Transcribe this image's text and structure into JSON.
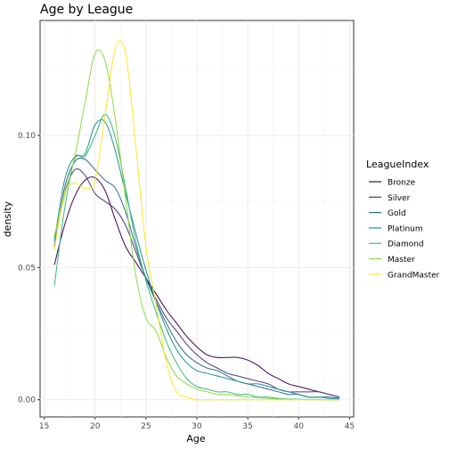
{
  "chart_data": {
    "type": "line",
    "title": "Age by League",
    "xlabel": "Age",
    "ylabel": "density",
    "xlim": [
      14.6,
      45.4
    ],
    "ylim": [
      -0.0065,
      0.1435
    ],
    "xticks": [
      15,
      20,
      25,
      30,
      35,
      40,
      45
    ],
    "yticks": [
      0.0,
      0.05,
      0.1
    ],
    "ytick_labels": [
      "0.00",
      "0.05",
      "0.10"
    ],
    "grid": true,
    "legend_title": "LeagueIndex",
    "legend_position": "right",
    "series": [
      {
        "name": "Bronze",
        "color": "#440154",
        "points": [
          [
            16,
            0.051
          ],
          [
            17,
            0.066
          ],
          [
            18,
            0.077
          ],
          [
            19,
            0.083
          ],
          [
            20,
            0.084
          ],
          [
            21,
            0.079
          ],
          [
            22,
            0.068
          ],
          [
            23,
            0.058
          ],
          [
            24,
            0.052
          ],
          [
            25,
            0.046
          ],
          [
            26,
            0.04
          ],
          [
            27,
            0.034
          ],
          [
            28,
            0.029
          ],
          [
            29,
            0.024
          ],
          [
            30,
            0.02
          ],
          [
            31,
            0.017
          ],
          [
            32,
            0.016
          ],
          [
            33,
            0.016
          ],
          [
            34,
            0.016
          ],
          [
            35,
            0.015
          ],
          [
            36,
            0.013
          ],
          [
            37,
            0.01
          ],
          [
            38,
            0.008
          ],
          [
            39,
            0.006
          ],
          [
            40,
            0.005
          ],
          [
            41,
            0.004
          ],
          [
            42,
            0.003
          ],
          [
            43,
            0.002
          ],
          [
            44,
            0.001
          ]
        ]
      },
      {
        "name": "Silver",
        "color": "#443A83",
        "points": [
          [
            16,
            0.058
          ],
          [
            17,
            0.078
          ],
          [
            18,
            0.087
          ],
          [
            19,
            0.085
          ],
          [
            20,
            0.078
          ],
          [
            21,
            0.075
          ],
          [
            22,
            0.072
          ],
          [
            23,
            0.066
          ],
          [
            24,
            0.056
          ],
          [
            25,
            0.046
          ],
          [
            26,
            0.038
          ],
          [
            27,
            0.031
          ],
          [
            28,
            0.026
          ],
          [
            29,
            0.021
          ],
          [
            30,
            0.017
          ],
          [
            31,
            0.014
          ],
          [
            32,
            0.012
          ],
          [
            33,
            0.01
          ],
          [
            34,
            0.009
          ],
          [
            35,
            0.008
          ],
          [
            36,
            0.007
          ],
          [
            37,
            0.006
          ],
          [
            38,
            0.004
          ],
          [
            39,
            0.003
          ],
          [
            40,
            0.003
          ],
          [
            41,
            0.003
          ],
          [
            42,
            0.003
          ],
          [
            43,
            0.002
          ],
          [
            44,
            0.001
          ]
        ]
      },
      {
        "name": "Gold",
        "color": "#31688E",
        "points": [
          [
            16,
            0.057
          ],
          [
            17,
            0.08
          ],
          [
            18,
            0.09
          ],
          [
            19,
            0.091
          ],
          [
            20,
            0.087
          ],
          [
            21,
            0.083
          ],
          [
            22,
            0.08
          ],
          [
            23,
            0.071
          ],
          [
            24,
            0.058
          ],
          [
            25,
            0.046
          ],
          [
            26,
            0.037
          ],
          [
            27,
            0.029
          ],
          [
            28,
            0.022
          ],
          [
            29,
            0.017
          ],
          [
            30,
            0.014
          ],
          [
            31,
            0.012
          ],
          [
            32,
            0.011
          ],
          [
            33,
            0.009
          ],
          [
            34,
            0.007
          ],
          [
            35,
            0.006
          ],
          [
            36,
            0.005
          ],
          [
            37,
            0.004
          ],
          [
            38,
            0.003
          ],
          [
            39,
            0.002
          ],
          [
            40,
            0.002
          ],
          [
            41,
            0.001
          ],
          [
            42,
            0.001
          ],
          [
            43,
            0.001
          ],
          [
            44,
            0.0005
          ]
        ]
      },
      {
        "name": "Platinum",
        "color": "#21908C",
        "points": [
          [
            16,
            0.06
          ],
          [
            17,
            0.083
          ],
          [
            18,
            0.092
          ],
          [
            19,
            0.093
          ],
          [
            20,
            0.104
          ],
          [
            21,
            0.105
          ],
          [
            22,
            0.094
          ],
          [
            23,
            0.078
          ],
          [
            24,
            0.063
          ],
          [
            25,
            0.049
          ],
          [
            26,
            0.037
          ],
          [
            27,
            0.027
          ],
          [
            28,
            0.019
          ],
          [
            29,
            0.014
          ],
          [
            30,
            0.011
          ],
          [
            31,
            0.01
          ],
          [
            32,
            0.009
          ],
          [
            33,
            0.008
          ],
          [
            34,
            0.007
          ],
          [
            35,
            0.006
          ],
          [
            36,
            0.006
          ],
          [
            37,
            0.005
          ],
          [
            38,
            0.004
          ],
          [
            39,
            0.003
          ],
          [
            40,
            0.002
          ],
          [
            41,
            0.001
          ],
          [
            42,
            0.001
          ],
          [
            43,
            0.0005
          ],
          [
            44,
            0.0003
          ]
        ]
      },
      {
        "name": "Diamond",
        "color": "#35B779",
        "points": [
          [
            16,
            0.043
          ],
          [
            17,
            0.072
          ],
          [
            18,
            0.091
          ],
          [
            19,
            0.092
          ],
          [
            20,
            0.1
          ],
          [
            21,
            0.108
          ],
          [
            22,
            0.099
          ],
          [
            23,
            0.08
          ],
          [
            24,
            0.06
          ],
          [
            25,
            0.045
          ],
          [
            26,
            0.033
          ],
          [
            27,
            0.022
          ],
          [
            28,
            0.014
          ],
          [
            29,
            0.008
          ],
          [
            30,
            0.005
          ],
          [
            31,
            0.004
          ],
          [
            32,
            0.003
          ],
          [
            33,
            0.003
          ],
          [
            34,
            0.002
          ],
          [
            35,
            0.002
          ],
          [
            36,
            0.001
          ],
          [
            37,
            0.001
          ],
          [
            38,
            0.0005
          ],
          [
            39,
            0.0003
          ],
          [
            40,
            0.0002
          ],
          [
            41,
            0.0001
          ],
          [
            42,
            0.0001
          ],
          [
            43,
            0.0
          ],
          [
            44,
            0.0
          ]
        ]
      },
      {
        "name": "Master",
        "color": "#8FD744",
        "points": [
          [
            16,
            0.062
          ],
          [
            17,
            0.077
          ],
          [
            18,
            0.092
          ],
          [
            19,
            0.112
          ],
          [
            20,
            0.131
          ],
          [
            21,
            0.128
          ],
          [
            22,
            0.106
          ],
          [
            23,
            0.076
          ],
          [
            24,
            0.047
          ],
          [
            25,
            0.031
          ],
          [
            26,
            0.026
          ],
          [
            27,
            0.016
          ],
          [
            28,
            0.009
          ],
          [
            29,
            0.006
          ],
          [
            30,
            0.004
          ],
          [
            31,
            0.003
          ],
          [
            32,
            0.002
          ],
          [
            33,
            0.002
          ],
          [
            34,
            0.0015
          ],
          [
            35,
            0.001
          ],
          [
            36,
            0.0008
          ],
          [
            37,
            0.0005
          ],
          [
            38,
            0.0003
          ],
          [
            39,
            0.0002
          ],
          [
            40,
            0.0001
          ],
          [
            41,
            0.0
          ],
          [
            42,
            0.0
          ],
          [
            43,
            0.0
          ],
          [
            44,
            0.0
          ]
        ]
      },
      {
        "name": "GrandMaster",
        "color": "#FDE725",
        "points": [
          [
            16,
            0.057
          ],
          [
            17,
            0.078
          ],
          [
            18,
            0.082
          ],
          [
            19,
            0.08
          ],
          [
            20,
            0.083
          ],
          [
            21,
            0.108
          ],
          [
            22,
            0.133
          ],
          [
            23,
            0.131
          ],
          [
            24,
            0.096
          ],
          [
            25,
            0.058
          ],
          [
            26,
            0.036
          ],
          [
            27,
            0.014
          ],
          [
            28,
            0.003
          ],
          [
            29,
            0.001
          ],
          [
            30,
            0.0
          ],
          [
            31,
            0.0
          ],
          [
            32,
            0.0
          ],
          [
            33,
            0.0
          ],
          [
            34,
            0.0
          ],
          [
            35,
            0.0
          ],
          [
            36,
            0.0
          ],
          [
            37,
            0.0
          ],
          [
            38,
            0.0
          ],
          [
            39,
            0.0
          ],
          [
            40,
            0.0
          ],
          [
            41,
            0.0
          ],
          [
            42,
            0.0
          ],
          [
            43,
            0.0
          ],
          [
            44,
            0.0
          ]
        ]
      }
    ]
  }
}
